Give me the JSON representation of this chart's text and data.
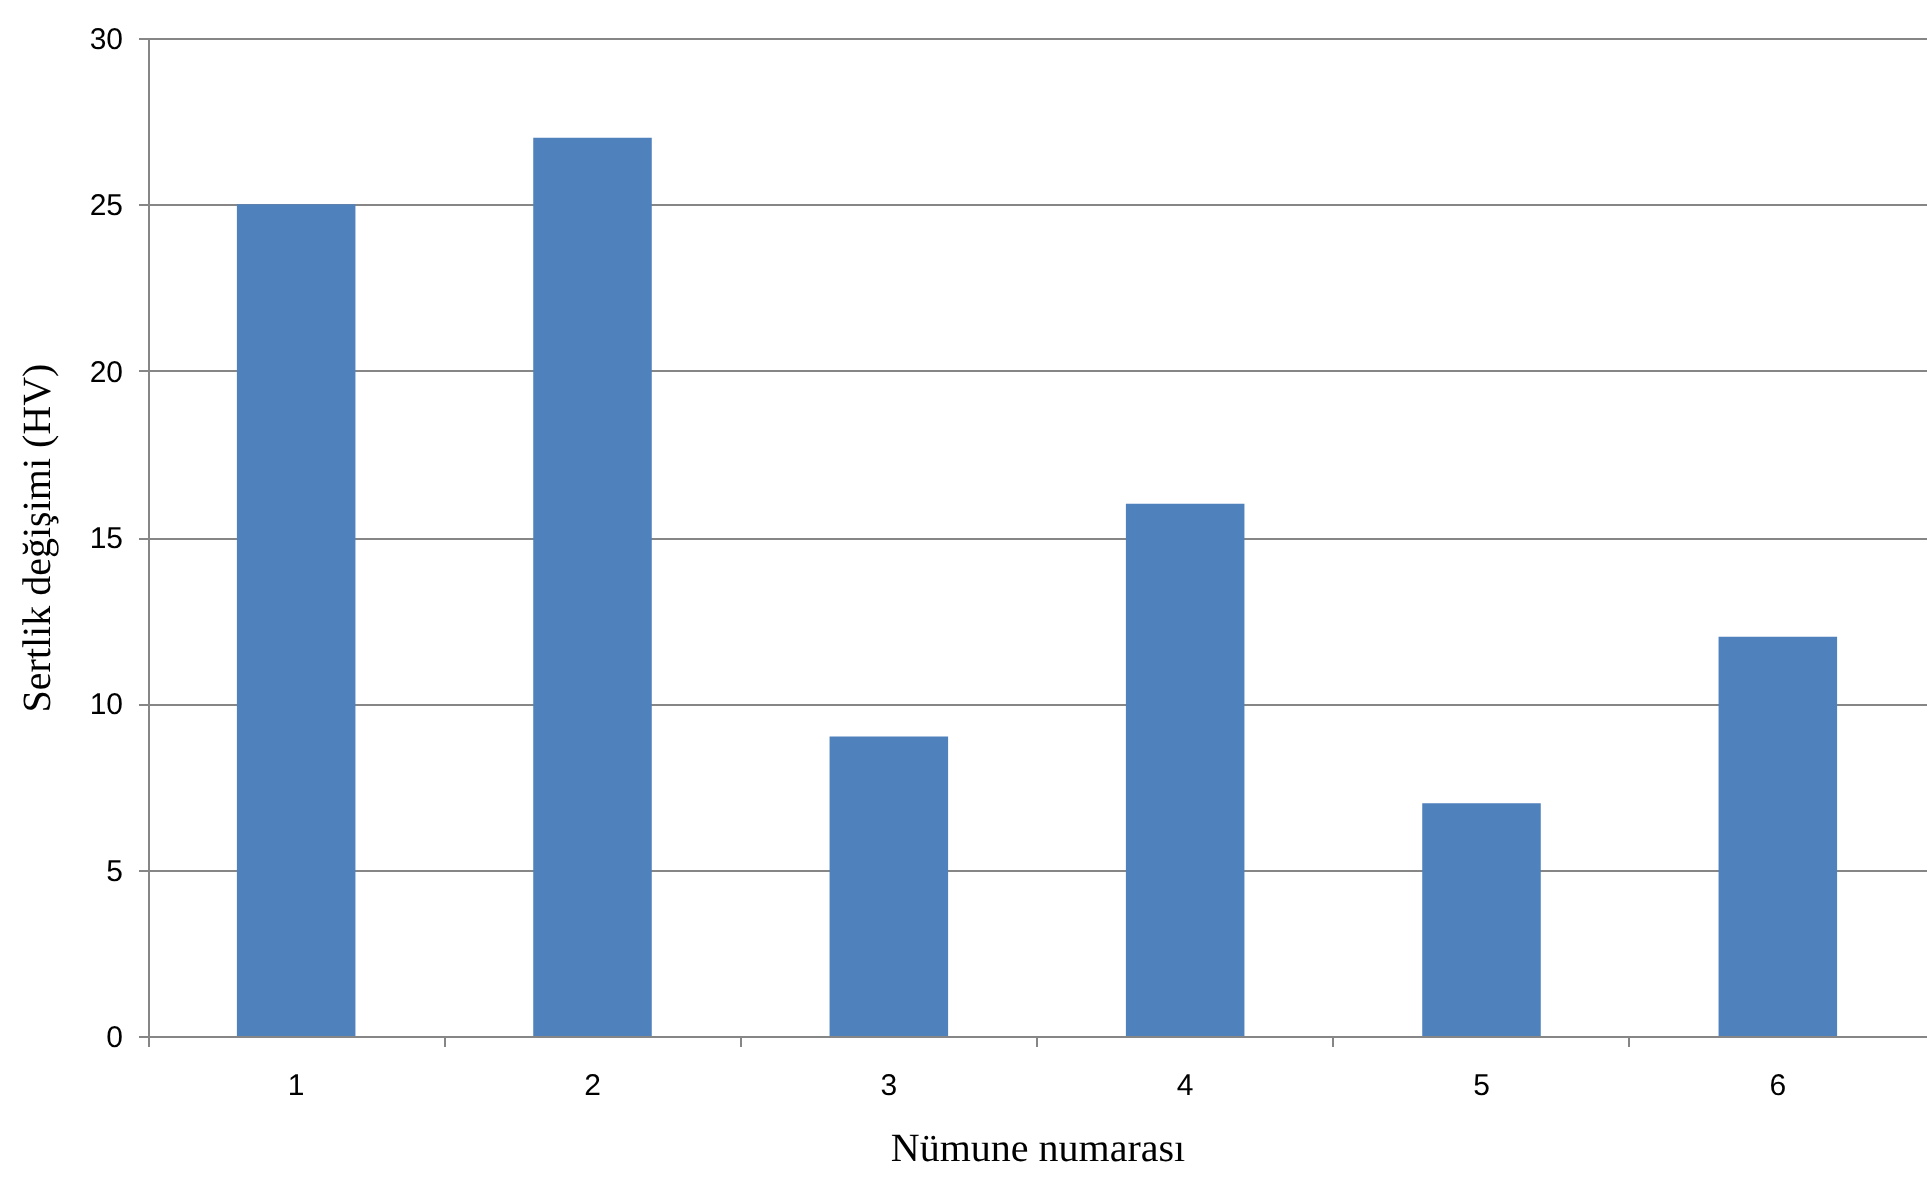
{
  "chart_data": {
    "type": "bar",
    "xlabel": "Nümune numarası",
    "ylabel": "Sertlik değişimi (HV)",
    "categories": [
      "1",
      "2",
      "3",
      "4",
      "5",
      "6"
    ],
    "values": [
      25,
      27,
      9,
      16,
      7,
      12
    ],
    "color": "#4f81bd",
    "ylim": [
      0,
      30
    ],
    "yticks": [
      0,
      5,
      10,
      15,
      20,
      25,
      30
    ],
    "grid": "y"
  }
}
